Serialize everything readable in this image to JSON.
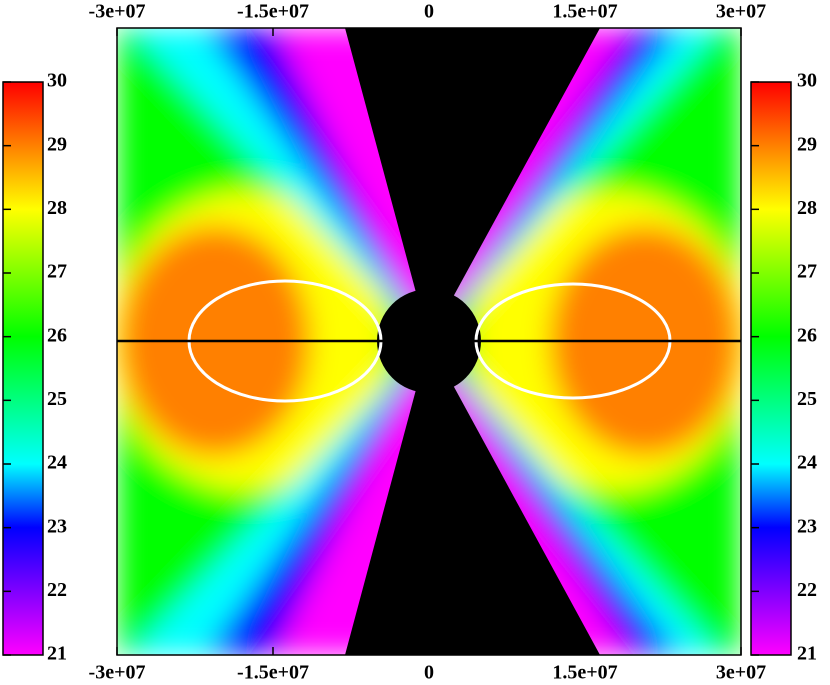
{
  "chart_data": {
    "type": "heatmap",
    "xlim": [
      -30000000,
      30000000
    ],
    "xticks": [
      {
        "value": -30000000,
        "label": "-3e+07"
      },
      {
        "value": -15000000,
        "label": "-1.5e+07"
      },
      0,
      {
        "value": 15000000,
        "label": "1.5e+07"
      },
      {
        "value": 30000000,
        "label": "3e+07"
      }
    ],
    "colorbar": {
      "clim": [
        21,
        30
      ],
      "ticks": [
        21,
        22,
        23,
        24,
        25,
        26,
        27,
        28,
        29,
        30
      ],
      "colors": [
        "#ff00ff",
        "#8000ff",
        "#0000ff",
        "#00ffff",
        "#00ff80",
        "#00ff00",
        "#80ff00",
        "#ffff00",
        "#ff8000",
        "#ff0000"
      ]
    }
  }
}
